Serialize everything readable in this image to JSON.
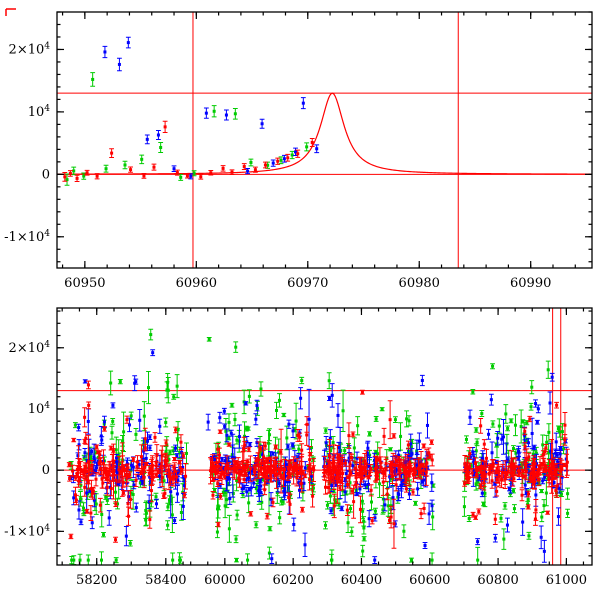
{
  "figure": {
    "background": "#ffffff",
    "axis_color": "#000000",
    "guide_line_color": "#ff0000",
    "corner_mark_color": "#ff0000",
    "series_colors": {
      "red": "#ff0000",
      "green": "#00cc00",
      "blue": "#0000ff"
    }
  },
  "chart_data": [
    {
      "type": "scatter",
      "panel": "top",
      "title": "",
      "xlabel": "",
      "ylabel": "",
      "xlim": [
        60947.5,
        60995.5
      ],
      "ylim": [
        -15000,
        26000
      ],
      "xticks": [
        60950,
        60960,
        60970,
        60980,
        60990
      ],
      "xtick_labels": [
        "60950",
        "60960",
        "60970",
        "60980",
        "60990"
      ],
      "x_minor_step": 2,
      "yticks": [
        -10000,
        0,
        10000,
        20000
      ],
      "ytick_labels": [
        "-1×10^4",
        "0",
        "10^4",
        "2×10^4"
      ],
      "y_minor_step": 2000,
      "grid": false,
      "hlines": [
        0,
        13000
      ],
      "vlines": [
        60959.7,
        60983.5
      ],
      "model_curve": {
        "shape": "lorentzian",
        "center": 60972.2,
        "width": 1.3,
        "amplitude": 13000,
        "baseline": 0
      },
      "series": [
        {
          "name": "green",
          "color": "#00cc00",
          "points": [
            [
              60948.4,
              -850,
              900
            ],
            [
              60949.0,
              550,
              600
            ],
            [
              60949.9,
              -280,
              500
            ],
            [
              60950.7,
              15200,
              1100
            ],
            [
              60951.9,
              900,
              550
            ],
            [
              60953.6,
              1500,
              600
            ],
            [
              60955.1,
              2400,
              680
            ],
            [
              60956.8,
              4300,
              800
            ],
            [
              60958.6,
              -480,
              480
            ],
            [
              60959.8,
              180,
              400
            ],
            [
              60961.6,
              10100,
              900
            ],
            [
              60963.5,
              9700,
              850
            ],
            [
              60964.9,
              1900,
              540
            ],
            [
              60966.4,
              1450,
              500
            ],
            [
              60967.6,
              2250,
              540
            ],
            [
              60968.6,
              3100,
              580
            ],
            [
              60969.9,
              4400,
              640
            ]
          ]
        },
        {
          "name": "blue",
          "color": "#0000ff",
          "points": [
            [
              60951.8,
              19600,
              900
            ],
            [
              60953.1,
              17600,
              1000
            ],
            [
              60953.9,
              21100,
              850
            ],
            [
              60955.6,
              5600,
              700
            ],
            [
              60956.6,
              6300,
              720
            ],
            [
              60958.0,
              900,
              450
            ],
            [
              60959.5,
              -320,
              400
            ],
            [
              60960.9,
              9800,
              820
            ],
            [
              60962.7,
              9500,
              800
            ],
            [
              60964.6,
              520,
              410
            ],
            [
              60965.9,
              8100,
              720
            ],
            [
              60966.9,
              1800,
              500
            ],
            [
              60967.9,
              2500,
              540
            ],
            [
              60968.9,
              3600,
              590
            ],
            [
              60969.6,
              11400,
              880
            ],
            [
              60970.8,
              4100,
              620
            ]
          ]
        },
        {
          "name": "red",
          "color": "#ff0000",
          "points": [
            [
              60948.2,
              -400,
              700
            ],
            [
              60948.7,
              150,
              450
            ],
            [
              60949.3,
              -650,
              500
            ],
            [
              60950.2,
              250,
              380
            ],
            [
              60951.1,
              -300,
              420
            ],
            [
              60952.4,
              3400,
              700
            ],
            [
              60954.1,
              750,
              420
            ],
            [
              60955.3,
              -250,
              380
            ],
            [
              60956.2,
              1150,
              480
            ],
            [
              60957.2,
              7600,
              900
            ],
            [
              60958.3,
              280,
              400
            ],
            [
              60959.2,
              -220,
              360
            ],
            [
              60960.4,
              -380,
              380
            ],
            [
              60961.3,
              250,
              360
            ],
            [
              60962.4,
              950,
              440
            ],
            [
              60963.2,
              340,
              370
            ],
            [
              60964.3,
              1250,
              470
            ],
            [
              60965.3,
              750,
              410
            ],
            [
              60966.2,
              1500,
              460
            ],
            [
              60967.3,
              2100,
              500
            ],
            [
              60968.2,
              2650,
              540
            ],
            [
              60969.1,
              3300,
              580
            ],
            [
              60970.4,
              5100,
              650
            ]
          ]
        }
      ]
    },
    {
      "type": "scatter",
      "panel": "bottom",
      "title": "",
      "xlabel": "",
      "ylabel": "",
      "broken_axis": true,
      "segments": [
        {
          "xlim": [
            58085,
            58470
          ],
          "frac": 0.2486,
          "xticks": [
            58200,
            58400
          ],
          "xtick_labels": [
            "58200",
            "58400"
          ],
          "x_minor_step": 50
        },
        {
          "xlim": [
            59898,
            61075
          ],
          "frac": 0.7514,
          "xticks": [
            60000,
            60200,
            60400,
            60600,
            60800,
            61000
          ],
          "xtick_labels": [
            "60000",
            "60200",
            "60400",
            "60600",
            "60800",
            "61000"
          ],
          "x_minor_step": 50
        }
      ],
      "ylim": [
        -15500,
        26500
      ],
      "yticks": [
        -10000,
        0,
        10000,
        20000
      ],
      "ytick_labels": [
        "-1×10^4",
        "0",
        "10^4",
        "2×10^4"
      ],
      "y_minor_step": 2000,
      "grid": false,
      "hlines": [
        0,
        13000
      ],
      "vlines": [
        60959.7,
        60983.5
      ],
      "random_seed": 1337,
      "clusters": [
        {
          "xmin": 58120,
          "xmax": 58460
        },
        {
          "xmin": 59950,
          "xmax": 60260
        },
        {
          "xmin": 60290,
          "xmax": 60610
        },
        {
          "xmin": 60700,
          "xmax": 61005
        }
      ],
      "cluster_series": {
        "green": {
          "color": "#00cc00",
          "n_per_cluster": 100,
          "core_sd": 3500,
          "wide_sd": 9000,
          "wide_frac": 0.45
        },
        "blue": {
          "color": "#0000ff",
          "n_per_cluster": 100,
          "core_sd": 1800,
          "wide_sd": 6000,
          "wide_frac": 0.4
        },
        "red": {
          "color": "#ff0000",
          "n_per_cluster": 150,
          "core_sd": 900,
          "wide_sd": 4800,
          "wide_frac": 0.3
        }
      },
      "error_bar_base": 250,
      "error_bar_log_span": 2.2,
      "error_bar_outlier_frac": 0.07,
      "error_bar_outlier_mult": 2.6,
      "y_clip": [
        -14700,
        25300
      ]
    }
  ]
}
